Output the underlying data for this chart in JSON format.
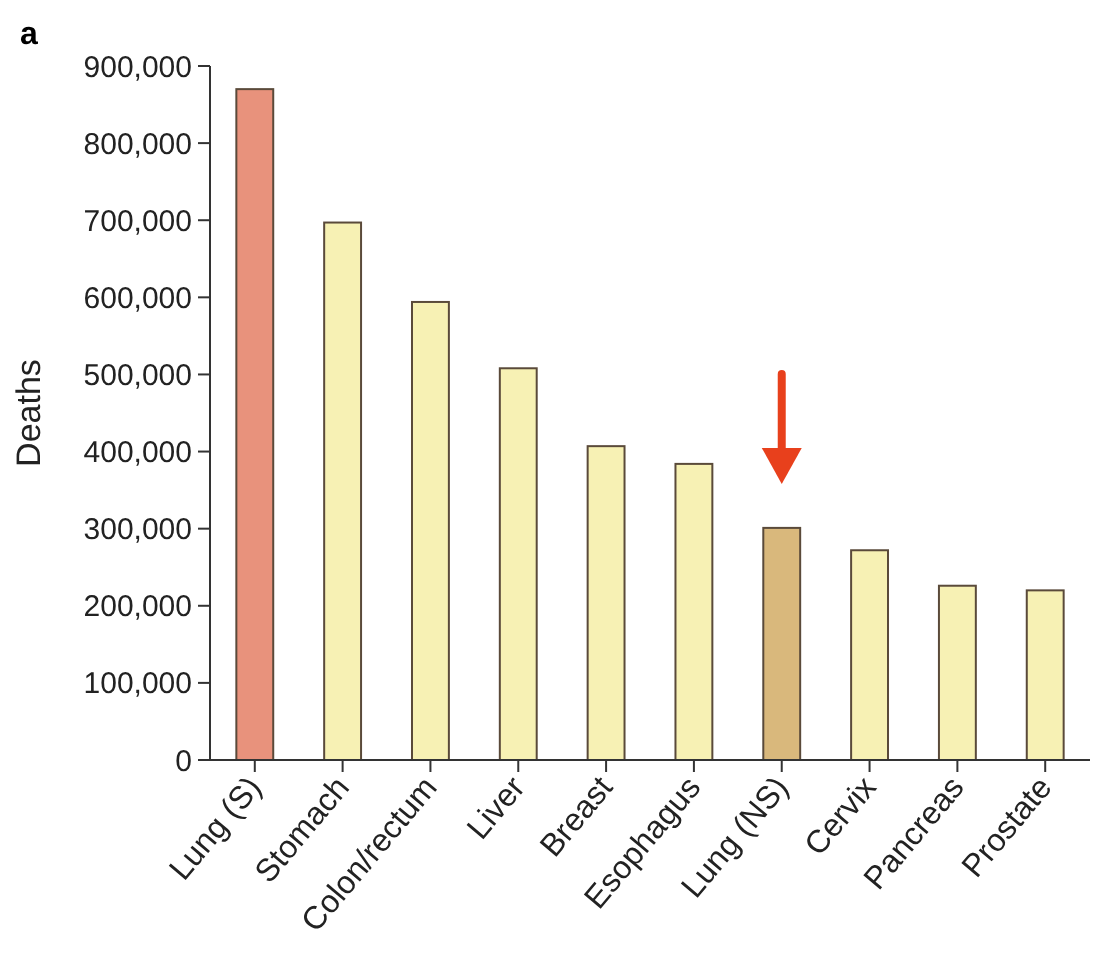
{
  "chart_data": {
    "type": "bar",
    "ylabel": "Deaths",
    "annotations": [
      "a"
    ],
    "categories": [
      "Lung (S)",
      "Stomach",
      "Colon/rectum",
      "Liver",
      "Breast",
      "Esophagus",
      "Lung (NS)",
      "Cervix",
      "Pancreas",
      "Prostate"
    ],
    "values": [
      870000,
      697000,
      594000,
      508000,
      407000,
      384000,
      301000,
      272000,
      226000,
      220000
    ],
    "colors": [
      "#e8927c",
      "#f7f1b4",
      "#f7f1b4",
      "#f7f1b4",
      "#f7f1b4",
      "#f7f1b4",
      "#d9b87c",
      "#f7f1b4",
      "#f7f1b4",
      "#f7f1b4"
    ],
    "ylim": [
      0,
      900000
    ],
    "yticks": [
      {
        "value": 0,
        "label": "0"
      },
      {
        "value": 100000,
        "label": "100,000"
      },
      {
        "value": 200000,
        "label": "200,000"
      },
      {
        "value": 300000,
        "label": "300,000"
      },
      {
        "value": 400000,
        "label": "400,000"
      },
      {
        "value": 500000,
        "label": "500,000"
      },
      {
        "value": 600000,
        "label": "600,000"
      },
      {
        "value": 700000,
        "label": "700,000"
      },
      {
        "value": 800000,
        "label": "800,000"
      },
      {
        "value": 900000,
        "label": "900,000"
      }
    ],
    "grid": false
  }
}
